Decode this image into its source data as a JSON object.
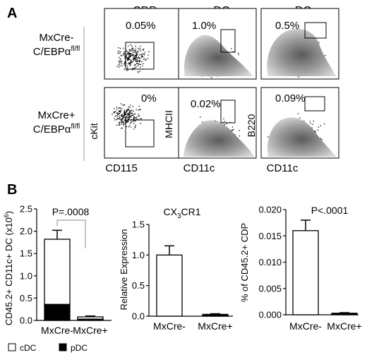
{
  "panel_a": {
    "label": "A",
    "columns": [
      "CDP",
      "cDC",
      "pDC"
    ],
    "rows": [
      {
        "genotype": "MxCre-",
        "allele_base": "C/EBPα",
        "allele_sup": "fl/fl"
      },
      {
        "genotype": "MxCre+",
        "allele_base": "C/EBPα",
        "allele_sup": "fl/fl"
      }
    ],
    "percentages": [
      [
        "0.05%",
        "1.0%",
        "0.5%"
      ],
      [
        "0%",
        "0.02%",
        "0.09%"
      ]
    ],
    "y_labels": [
      "cKit",
      "MHCII",
      "B220"
    ],
    "x_labels": [
      "CD115",
      "CD11c",
      "CD11c"
    ]
  },
  "panel_b": {
    "label": "B",
    "legend": [
      {
        "name": "cDC",
        "color": "#ffffff"
      },
      {
        "name": "pDC",
        "color": "#000000"
      }
    ]
  },
  "colors": {
    "ink": "#000000",
    "density_low": "#d6d6d6",
    "density_high": "#5a5a5a"
  },
  "chart_data": [
    {
      "type": "bar",
      "stacked": true,
      "title": "",
      "xlabel": "",
      "ylabel": "CD45.2+ CD11c+ DC (x10",
      "ylabel_sup": "6",
      "ylabel_end": ")",
      "categories": [
        "MxCre-",
        "MxCre+"
      ],
      "ylim": [
        0,
        2.5
      ],
      "yticks": [
        "0.0",
        "0.5",
        "1.0",
        "1.5",
        "2.0",
        "2.5"
      ],
      "series": [
        {
          "name": "pDC",
          "values": [
            0.36,
            0.03
          ],
          "errors": [
            0.05,
            0.01
          ],
          "color": "#000000"
        },
        {
          "name": "cDC",
          "values": [
            1.46,
            0.05
          ],
          "errors": [
            0.2,
            0.02
          ],
          "color": "#ffffff"
        }
      ],
      "annotation": "P=.0008"
    },
    {
      "type": "bar",
      "title": "CX",
      "title_sub": "3",
      "title_end": "CR1",
      "xlabel": "",
      "ylabel": "Relative Expression",
      "categories": [
        "MxCre-",
        "MxCre+"
      ],
      "ylim": [
        0,
        1.5
      ],
      "yticks": [
        "0.0",
        "0.5",
        "1.0",
        "1.5"
      ],
      "values": [
        1.0,
        0.03
      ],
      "errors": [
        0.15,
        0.01
      ]
    },
    {
      "type": "bar",
      "title": "",
      "xlabel": "",
      "ylabel": "% of CD45.2+ CDP",
      "categories": [
        "MxCre-",
        "MxCre+"
      ],
      "ylim": [
        0,
        0.02
      ],
      "yticks": [
        "0.000",
        "0.005",
        "0.010",
        "0.015",
        "0.020"
      ],
      "values": [
        0.016,
        0.0003
      ],
      "errors": [
        0.002,
        0.0001
      ],
      "annotation": "P<.0001"
    }
  ]
}
